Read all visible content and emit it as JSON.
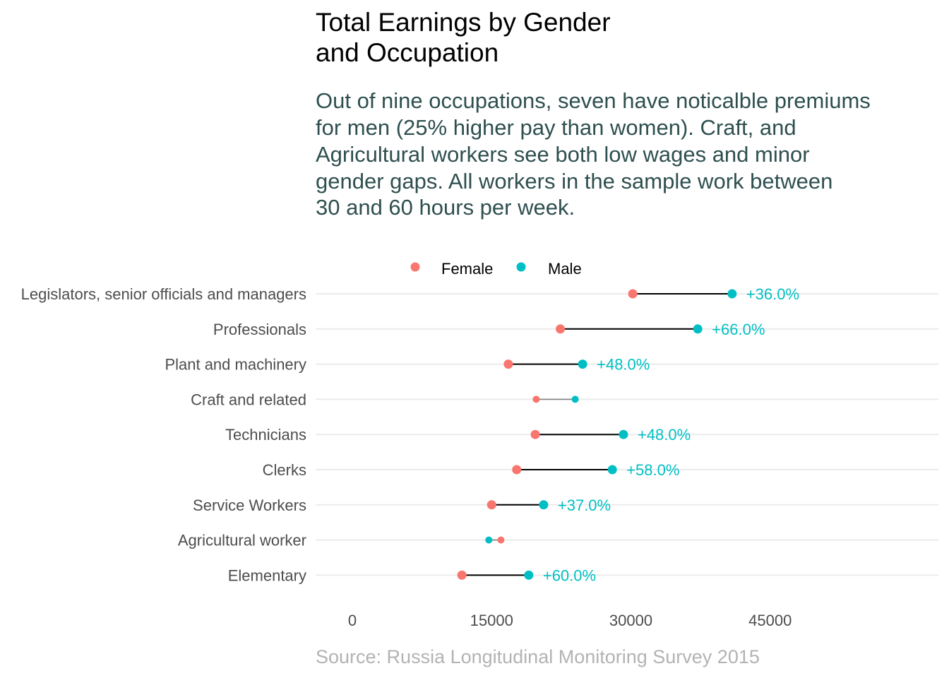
{
  "chart_data": {
    "type": "dumbbell",
    "title_lines": [
      "Total Earnings by Gender",
      "and Occupation"
    ],
    "subtitle_lines": [
      "Out of nine occupations, seven have noticalble premiums",
      "for men (25% higher pay than women). Craft, and",
      "Agricultural workers see both low wages and minor",
      "gender gaps. All workers in the sample work between",
      "30 and 60 hours per week."
    ],
    "caption": "Source: Russia Longitudinal Monitoring Survey 2015",
    "legend": [
      {
        "name": "Female",
        "color": "#F8766D"
      },
      {
        "name": "Male",
        "color": "#00BFC4"
      }
    ],
    "x_ticks": [
      "0",
      "15000",
      "30000",
      "45000"
    ],
    "x_tick_values": [
      0,
      15000,
      30000,
      45000
    ],
    "xlim": [
      0,
      63000
    ],
    "categories": [
      "Legislators, senior officials and managers",
      "Professionals",
      "Plant and machinery",
      "Craft and related",
      "Technicians",
      "Clerks",
      "Service Workers",
      "Agricultural worker",
      "Elementary"
    ],
    "series": [
      {
        "name": "Female",
        "values": [
          30200,
          22400,
          16800,
          19800,
          19700,
          17700,
          15000,
          16000,
          11800
        ]
      },
      {
        "name": "Male",
        "values": [
          40900,
          37200,
          24800,
          24000,
          29200,
          28000,
          20600,
          14700,
          19000
        ]
      }
    ],
    "highlighted": [
      true,
      true,
      true,
      false,
      true,
      true,
      true,
      false,
      true
    ],
    "gap_labels": [
      "+36.0%",
      "+66.0%",
      "+48.0%",
      "",
      "+48.0%",
      "+58.0%",
      "+37.0%",
      "",
      "+60.0%"
    ]
  }
}
